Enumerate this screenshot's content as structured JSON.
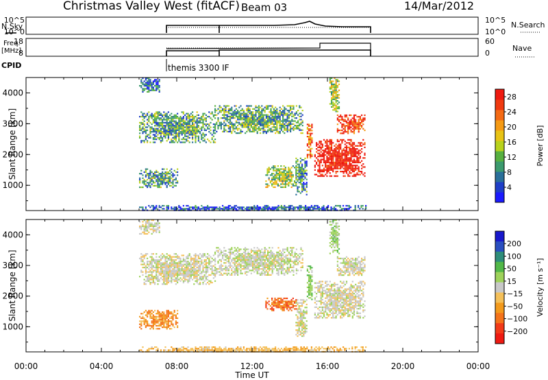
{
  "header": {
    "site": "Christmas Valley West (fitACF)",
    "beam": "Beam 03",
    "date": "14/Mar/2012"
  },
  "top_panels": {
    "nsky_label": "N.Sky",
    "nsky_ticks": [
      "10^5",
      "10^0"
    ],
    "nsearch_label": "N.Search",
    "nsearch_ticks": [
      "10^5",
      "10^0"
    ],
    "freq_label": "Freq.",
    "freq_unit": "[MHz]",
    "freq_ticks": [
      "18",
      "8"
    ],
    "nave_label": "Nave",
    "nave_ticks": [
      "60",
      "0"
    ],
    "cpid_label": "CPID",
    "cpid_value": "themis 3300 IF"
  },
  "chart_data": [
    {
      "type": "heatmap",
      "name": "power",
      "ylabel": "Slant Range [km]",
      "yticks": [
        1000,
        2000,
        3000,
        4000
      ],
      "ylim": [
        180,
        4500
      ],
      "xlim_hours": [
        0,
        24
      ],
      "colorbar": {
        "label": "Power [dB]",
        "ticks": [
          "4",
          "8",
          "12",
          "16",
          "20",
          "24",
          "28"
        ],
        "colors": [
          "#1a1aff",
          "#1f3fc8",
          "#2a6f9a",
          "#3c9a6e",
          "#57b040",
          "#b8d21c",
          "#e8c315",
          "#f59a14",
          "#f46a14",
          "#f03a10",
          "#ee1a10"
        ]
      },
      "regions": [
        {
          "t": [
            6.0,
            18.0
          ],
          "r": [
            180,
            360
          ],
          "v": 5
        },
        {
          "t": [
            6.0,
            7.1
          ],
          "r": [
            4050,
            4500
          ],
          "v": 7
        },
        {
          "t": [
            6.0,
            10.0
          ],
          "r": [
            2400,
            3400
          ],
          "v": 10
        },
        {
          "t": [
            10.0,
            14.7
          ],
          "r": [
            2700,
            3600
          ],
          "v": 11
        },
        {
          "t": [
            6.0,
            8.0
          ],
          "r": [
            950,
            1550
          ],
          "v": 10
        },
        {
          "t": [
            12.7,
            14.3
          ],
          "r": [
            950,
            1650
          ],
          "v": 14
        },
        {
          "t": [
            14.3,
            14.9
          ],
          "r": [
            700,
            1900
          ],
          "v": 9
        },
        {
          "t": [
            14.9,
            15.2
          ],
          "r": [
            1900,
            3000
          ],
          "v": 24
        },
        {
          "t": [
            15.3,
            18.0
          ],
          "r": [
            1300,
            2500
          ],
          "v": 30
        },
        {
          "t": [
            16.5,
            18.0
          ],
          "r": [
            2700,
            3300
          ],
          "v": 27
        },
        {
          "t": [
            16.1,
            16.6
          ],
          "r": [
            3400,
            4500
          ],
          "v": 14
        }
      ]
    },
    {
      "type": "heatmap",
      "name": "velocity",
      "xlabel": "Time UT",
      "ylabel": "Slant Range [km]",
      "yticks": [
        1000,
        2000,
        3000,
        4000
      ],
      "ylim": [
        180,
        4500
      ],
      "xlim_hours": [
        0,
        24
      ],
      "xticks": [
        "00:00",
        "04:00",
        "08:00",
        "12:00",
        "16:00",
        "20:00",
        "00:00"
      ],
      "colorbar": {
        "label": "Velocity [m s⁻¹]",
        "ticks": [
          "200",
          "100",
          "50",
          "15",
          "−15",
          "−50",
          "−100",
          "−200"
        ],
        "colors": [
          "#1818cc",
          "#2a4fc0",
          "#2f8d7a",
          "#52b848",
          "#9ed25a",
          "#c8c8c8",
          "#f4c05a",
          "#f39a1c",
          "#f4731a",
          "#f23a18",
          "#ef1a12"
        ]
      },
      "regions": [
        {
          "t": [
            6.0,
            18.0
          ],
          "r": [
            180,
            360
          ],
          "v": -40
        },
        {
          "t": [
            6.0,
            7.1
          ],
          "r": [
            4050,
            4500
          ],
          "v": 0
        },
        {
          "t": [
            6.0,
            10.0
          ],
          "r": [
            2400,
            3400
          ],
          "v": 0
        },
        {
          "t": [
            10.0,
            14.7
          ],
          "r": [
            2700,
            3600
          ],
          "v": 5
        },
        {
          "t": [
            6.0,
            8.0
          ],
          "r": [
            950,
            1550
          ],
          "v": -70
        },
        {
          "t": [
            12.7,
            14.3
          ],
          "r": [
            1550,
            1950
          ],
          "v": -90
        },
        {
          "t": [
            14.3,
            14.9
          ],
          "r": [
            700,
            1900
          ],
          "v": 0
        },
        {
          "t": [
            14.9,
            15.2
          ],
          "r": [
            1900,
            3000
          ],
          "v": 40
        },
        {
          "t": [
            15.3,
            18.0
          ],
          "r": [
            1300,
            2500
          ],
          "v": 0
        },
        {
          "t": [
            16.5,
            18.0
          ],
          "r": [
            2700,
            3300
          ],
          "v": 0
        },
        {
          "t": [
            16.1,
            16.6
          ],
          "r": [
            3400,
            4500
          ],
          "v": 30
        }
      ]
    }
  ]
}
